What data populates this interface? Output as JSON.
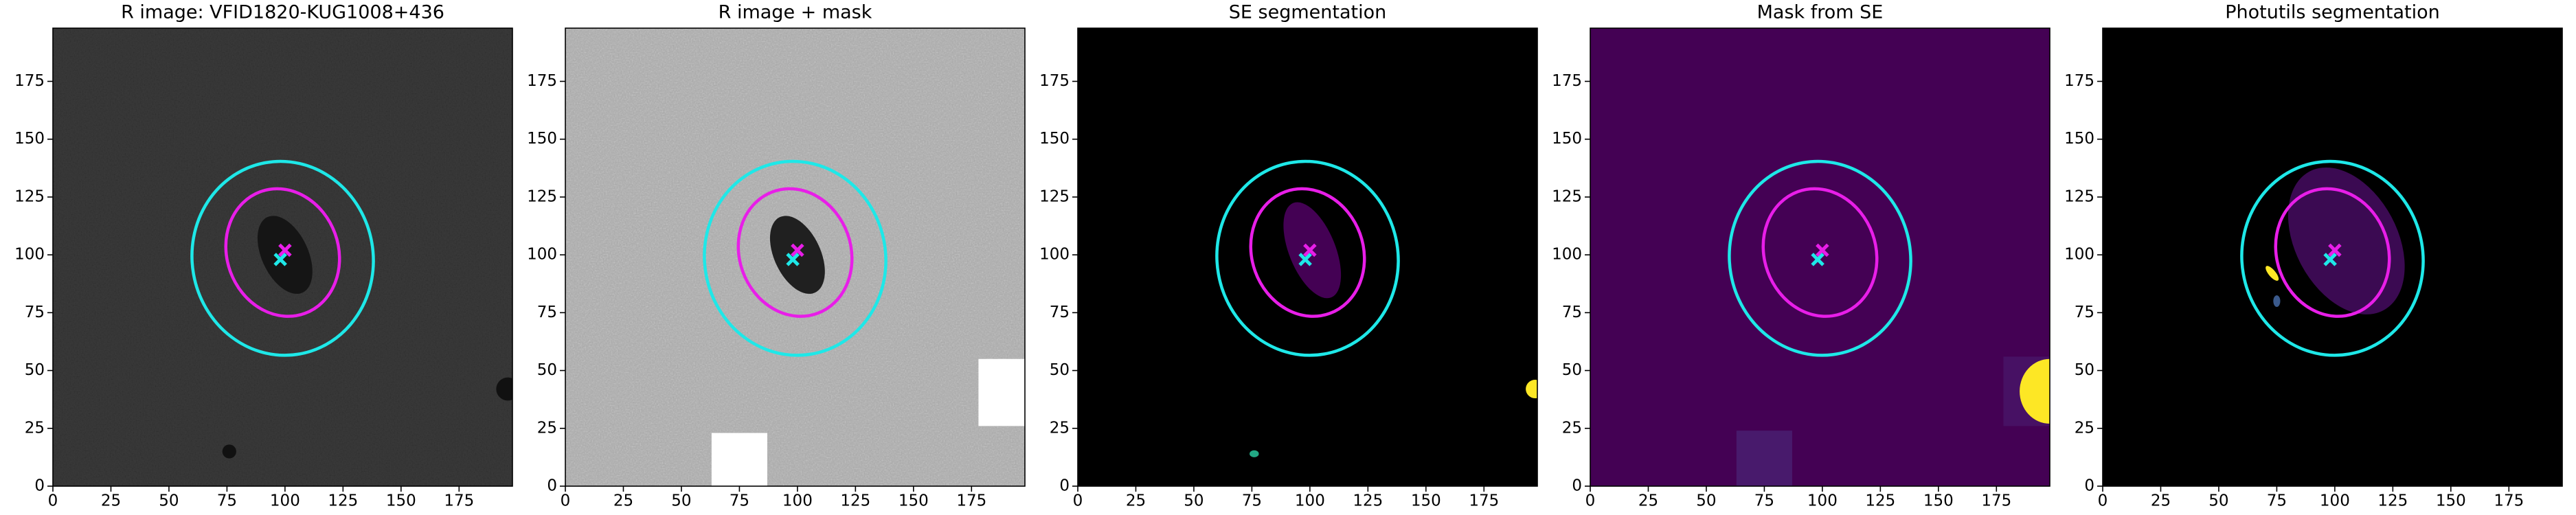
{
  "chart_data": [
    {
      "type": "image",
      "title": "R image: VFID1820-KUG1008+436",
      "background": "noise-dark",
      "xlim": [
        0,
        198
      ],
      "ylim": [
        0,
        198
      ],
      "xticks": [
        0,
        25,
        50,
        75,
        100,
        125,
        150,
        175
      ],
      "yticks": [
        0,
        25,
        50,
        75,
        100,
        125,
        150,
        175
      ],
      "regions": [
        {
          "shape": "ellipse",
          "cx": 100,
          "cy": 100,
          "rx": 10,
          "ry": 18,
          "angle": 25,
          "color": "#151515"
        },
        {
          "shape": "ellipse",
          "cx": 76,
          "cy": 15,
          "rx": 3,
          "ry": 3,
          "angle": 0,
          "color": "#111111"
        },
        {
          "shape": "ellipse",
          "cx": 196,
          "cy": 42,
          "rx": 5,
          "ry": 5,
          "angle": 0,
          "color": "#111111"
        }
      ],
      "ellipses": [
        {
          "cx": 99,
          "cy": 98.5,
          "rx": 39,
          "ry": 42,
          "angle": 10,
          "color": "#1ee8e8"
        },
        {
          "cx": 99,
          "cy": 101,
          "rx": 24,
          "ry": 28,
          "angle": 20,
          "color": "#e81ee8"
        }
      ],
      "markers": [
        {
          "x": 100,
          "y": 102,
          "color": "#e81ee8"
        },
        {
          "x": 98,
          "y": 98,
          "color": "#1ee8e8"
        }
      ]
    },
    {
      "type": "image",
      "title": "R image + mask",
      "background": "noise-light",
      "xlim": [
        0,
        198
      ],
      "ylim": [
        0,
        198
      ],
      "xticks": [
        0,
        25,
        50,
        75,
        100,
        125,
        150,
        175
      ],
      "yticks": [
        0,
        25,
        50,
        75,
        100,
        125,
        150,
        175
      ],
      "regions": [
        {
          "shape": "ellipse",
          "cx": 100,
          "cy": 100,
          "rx": 10,
          "ry": 18,
          "angle": 25,
          "color": "#202020"
        },
        {
          "shape": "rect",
          "x0": 63,
          "x1": 87,
          "y0": 0,
          "y1": 23,
          "color": "#ffffff"
        },
        {
          "shape": "rect",
          "x0": 178,
          "x1": 198,
          "y0": 26,
          "y1": 55,
          "color": "#ffffff"
        }
      ],
      "ellipses": [
        {
          "cx": 99,
          "cy": 98.5,
          "rx": 39,
          "ry": 42,
          "angle": 10,
          "color": "#1ee8e8"
        },
        {
          "cx": 99,
          "cy": 101,
          "rx": 24,
          "ry": 28,
          "angle": 20,
          "color": "#e81ee8"
        }
      ],
      "markers": [
        {
          "x": 100,
          "y": 102,
          "color": "#e81ee8"
        },
        {
          "x": 98,
          "y": 98,
          "color": "#1ee8e8"
        }
      ]
    },
    {
      "type": "image",
      "title": "SE segmentation",
      "background": "#000000",
      "xlim": [
        0,
        198
      ],
      "ylim": [
        0,
        198
      ],
      "xticks": [
        0,
        25,
        50,
        75,
        100,
        125,
        150,
        175
      ],
      "yticks": [
        0,
        25,
        50,
        75,
        100,
        125,
        150,
        175
      ],
      "regions": [
        {
          "shape": "ellipse",
          "cx": 101,
          "cy": 102,
          "rx": 10,
          "ry": 22,
          "angle": 22,
          "color": "#440154"
        },
        {
          "shape": "ellipse",
          "cx": 76,
          "cy": 14,
          "rx": 2,
          "ry": 1.5,
          "angle": 0,
          "color": "#22a884"
        },
        {
          "shape": "ellipse",
          "cx": 197,
          "cy": 42,
          "rx": 4,
          "ry": 4,
          "angle": 0,
          "color": "#fde725"
        }
      ],
      "ellipses": [
        {
          "cx": 99,
          "cy": 98.5,
          "rx": 39,
          "ry": 42,
          "angle": 10,
          "color": "#1ee8e8"
        },
        {
          "cx": 99,
          "cy": 101,
          "rx": 24,
          "ry": 28,
          "angle": 20,
          "color": "#e81ee8"
        }
      ],
      "markers": [
        {
          "x": 100,
          "y": 102,
          "color": "#e81ee8"
        },
        {
          "x": 98,
          "y": 98,
          "color": "#1ee8e8"
        }
      ]
    },
    {
      "type": "image",
      "title": "Mask from SE",
      "background": "#440154",
      "xlim": [
        0,
        198
      ],
      "ylim": [
        0,
        198
      ],
      "xticks": [
        0,
        25,
        50,
        75,
        100,
        125,
        150,
        175
      ],
      "yticks": [
        0,
        25,
        50,
        75,
        100,
        125,
        150,
        175
      ],
      "regions": [
        {
          "shape": "rect",
          "x0": 63,
          "x1": 87,
          "y0": 0,
          "y1": 24,
          "color": "#481a6c"
        },
        {
          "shape": "rect",
          "x0": 178,
          "x1": 198,
          "y0": 26,
          "y1": 56,
          "color": "#471164"
        },
        {
          "shape": "ellipse",
          "cx": 198,
          "cy": 41,
          "rx": 13,
          "ry": 14,
          "angle": 0,
          "color": "#fde725"
        }
      ],
      "ellipses": [
        {
          "cx": 99,
          "cy": 98.5,
          "rx": 39,
          "ry": 42,
          "angle": 10,
          "color": "#1ee8e8"
        },
        {
          "cx": 99,
          "cy": 101,
          "rx": 24,
          "ry": 28,
          "angle": 20,
          "color": "#e81ee8"
        }
      ],
      "markers": [
        {
          "x": 100,
          "y": 102,
          "color": "#e81ee8"
        },
        {
          "x": 98,
          "y": 98,
          "color": "#1ee8e8"
        }
      ]
    },
    {
      "type": "image",
      "title": "Photutils segmentation",
      "background": "#000000",
      "xlim": [
        0,
        198
      ],
      "ylim": [
        0,
        198
      ],
      "xticks": [
        0,
        25,
        50,
        75,
        100,
        125,
        150,
        175
      ],
      "yticks": [
        0,
        25,
        50,
        75,
        100,
        125,
        150,
        175
      ],
      "regions": [
        {
          "shape": "ellipse",
          "cx": 105,
          "cy": 106,
          "rx": 22,
          "ry": 34,
          "angle": 28,
          "color": "#3b0a52"
        },
        {
          "shape": "ellipse",
          "cx": 73,
          "cy": 92,
          "rx": 1.5,
          "ry": 4,
          "angle": 40,
          "color": "#fde725"
        },
        {
          "shape": "ellipse",
          "cx": 75,
          "cy": 80,
          "rx": 1.5,
          "ry": 2.5,
          "angle": 0,
          "color": "#3b5a8c"
        }
      ],
      "ellipses": [
        {
          "cx": 99,
          "cy": 98.5,
          "rx": 39,
          "ry": 42,
          "angle": 10,
          "color": "#1ee8e8"
        },
        {
          "cx": 99,
          "cy": 101,
          "rx": 24,
          "ry": 28,
          "angle": 20,
          "color": "#e81ee8"
        }
      ],
      "markers": [
        {
          "x": 100,
          "y": 102,
          "color": "#e81ee8"
        },
        {
          "x": 98,
          "y": 98,
          "color": "#1ee8e8"
        }
      ]
    }
  ]
}
